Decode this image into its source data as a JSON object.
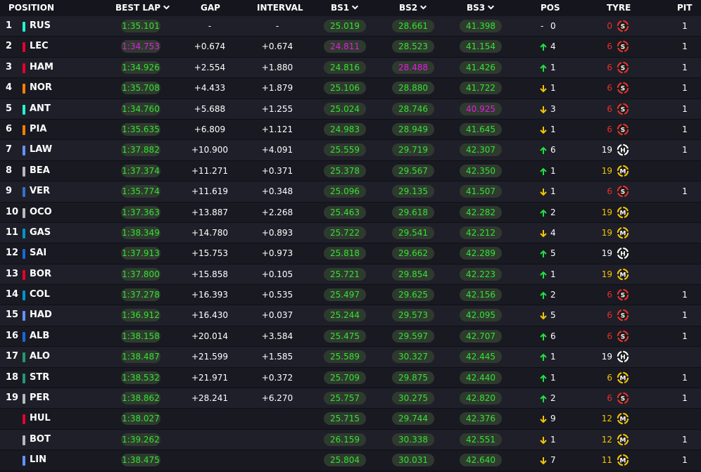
{
  "headers": {
    "position": "POSITION",
    "best_lap": "BEST LAP",
    "gap": "GAP",
    "interval": "INTERVAL",
    "bs1": "BS1",
    "bs2": "BS2",
    "bs3": "BS3",
    "pos": "POS",
    "tyre": "TYRE",
    "pit": "PIT"
  },
  "colors": {
    "green": "#33e233",
    "purple": "#e01ee0",
    "up": "#22dd44",
    "down": "#f5c400",
    "soft": "#e8302a",
    "medium": "#f5c400",
    "hard": "#ffffff"
  },
  "rows": [
    {
      "position": "1",
      "driver": "RUS",
      "team_color": "#27f4d2",
      "best_lap": "1:35.101",
      "best_lap_purple": false,
      "gap": "-",
      "interval": "-",
      "bs1": "25.019",
      "bs1_purple": false,
      "bs2": "28.661",
      "bs2_purple": false,
      "bs3": "41.398",
      "bs3_purple": false,
      "pos_change": "none",
      "pos_value": "0",
      "tyre_laps": "0",
      "tyre": "S",
      "pit": "1"
    },
    {
      "position": "2",
      "driver": "LEC",
      "team_color": "#e8002d",
      "best_lap": "1:34.753",
      "best_lap_purple": true,
      "gap": "+0.674",
      "interval": "+0.674",
      "bs1": "24.811",
      "bs1_purple": true,
      "bs2": "28.523",
      "bs2_purple": false,
      "bs3": "41.154",
      "bs3_purple": false,
      "pos_change": "up",
      "pos_value": "4",
      "tyre_laps": "6",
      "tyre": "S",
      "pit": "1"
    },
    {
      "position": "3",
      "driver": "HAM",
      "team_color": "#e8002d",
      "best_lap": "1:34.926",
      "best_lap_purple": false,
      "gap": "+2.554",
      "interval": "+1.880",
      "bs1": "24.816",
      "bs1_purple": false,
      "bs2": "28.488",
      "bs2_purple": true,
      "bs3": "41.426",
      "bs3_purple": false,
      "pos_change": "up",
      "pos_value": "1",
      "tyre_laps": "6",
      "tyre": "S",
      "pit": "1"
    },
    {
      "position": "4",
      "driver": "NOR",
      "team_color": "#ff8000",
      "best_lap": "1:35.708",
      "best_lap_purple": false,
      "gap": "+4.433",
      "interval": "+1.879",
      "bs1": "25.106",
      "bs1_purple": false,
      "bs2": "28.880",
      "bs2_purple": false,
      "bs3": "41.722",
      "bs3_purple": false,
      "pos_change": "down",
      "pos_value": "1",
      "tyre_laps": "6",
      "tyre": "S",
      "pit": "1"
    },
    {
      "position": "5",
      "driver": "ANT",
      "team_color": "#27f4d2",
      "best_lap": "1:34.760",
      "best_lap_purple": false,
      "gap": "+5.688",
      "interval": "+1.255",
      "bs1": "25.024",
      "bs1_purple": false,
      "bs2": "28.746",
      "bs2_purple": false,
      "bs3": "40.925",
      "bs3_purple": true,
      "pos_change": "down",
      "pos_value": "3",
      "tyre_laps": "6",
      "tyre": "S",
      "pit": "1"
    },
    {
      "position": "6",
      "driver": "PIA",
      "team_color": "#ff8000",
      "best_lap": "1:35.635",
      "best_lap_purple": false,
      "gap": "+6.809",
      "interval": "+1.121",
      "bs1": "24.983",
      "bs1_purple": false,
      "bs2": "28.949",
      "bs2_purple": false,
      "bs3": "41.645",
      "bs3_purple": false,
      "pos_change": "down",
      "pos_value": "1",
      "tyre_laps": "6",
      "tyre": "S",
      "pit": "1"
    },
    {
      "position": "7",
      "driver": "LAW",
      "team_color": "#6692ff",
      "best_lap": "1:37.882",
      "best_lap_purple": false,
      "gap": "+10.900",
      "interval": "+4.091",
      "bs1": "25.559",
      "bs1_purple": false,
      "bs2": "29.719",
      "bs2_purple": false,
      "bs3": "42.307",
      "bs3_purple": false,
      "pos_change": "up",
      "pos_value": "6",
      "tyre_laps": "19",
      "tyre": "H",
      "pit": "1"
    },
    {
      "position": "8",
      "driver": "BEA",
      "team_color": "#b6babd",
      "best_lap": "1:37.374",
      "best_lap_purple": false,
      "gap": "+11.271",
      "interval": "+0.371",
      "bs1": "25.378",
      "bs1_purple": false,
      "bs2": "29.567",
      "bs2_purple": false,
      "bs3": "42.350",
      "bs3_purple": false,
      "pos_change": "up",
      "pos_value": "1",
      "tyre_laps": "19",
      "tyre": "M",
      "pit": ""
    },
    {
      "position": "9",
      "driver": "VER",
      "team_color": "#3671c6",
      "best_lap": "1:35.774",
      "best_lap_purple": false,
      "gap": "+11.619",
      "interval": "+0.348",
      "bs1": "25.096",
      "bs1_purple": false,
      "bs2": "29.135",
      "bs2_purple": false,
      "bs3": "41.507",
      "bs3_purple": false,
      "pos_change": "down",
      "pos_value": "1",
      "tyre_laps": "6",
      "tyre": "S",
      "pit": "1"
    },
    {
      "position": "10",
      "driver": "OCO",
      "team_color": "#b6babd",
      "best_lap": "1:37.363",
      "best_lap_purple": false,
      "gap": "+13.887",
      "interval": "+2.268",
      "bs1": "25.463",
      "bs1_purple": false,
      "bs2": "29.618",
      "bs2_purple": false,
      "bs3": "42.282",
      "bs3_purple": false,
      "pos_change": "up",
      "pos_value": "2",
      "tyre_laps": "19",
      "tyre": "M",
      "pit": ""
    },
    {
      "position": "11",
      "driver": "GAS",
      "team_color": "#0093cc",
      "best_lap": "1:38.349",
      "best_lap_purple": false,
      "gap": "+14.780",
      "interval": "+0.893",
      "bs1": "25.722",
      "bs1_purple": false,
      "bs2": "29.541",
      "bs2_purple": false,
      "bs3": "42.212",
      "bs3_purple": false,
      "pos_change": "down",
      "pos_value": "4",
      "tyre_laps": "19",
      "tyre": "M",
      "pit": ""
    },
    {
      "position": "12",
      "driver": "SAI",
      "team_color": "#1868db",
      "best_lap": "1:37.913",
      "best_lap_purple": false,
      "gap": "+15.753",
      "interval": "+0.973",
      "bs1": "25.818",
      "bs1_purple": false,
      "bs2": "29.662",
      "bs2_purple": false,
      "bs3": "42.289",
      "bs3_purple": false,
      "pos_change": "up",
      "pos_value": "5",
      "tyre_laps": "19",
      "tyre": "H",
      "pit": ""
    },
    {
      "position": "13",
      "driver": "BOR",
      "team_color": "#e8002d",
      "best_lap": "1:37.800",
      "best_lap_purple": false,
      "gap": "+15.858",
      "interval": "+0.105",
      "bs1": "25.721",
      "bs1_purple": false,
      "bs2": "29.854",
      "bs2_purple": false,
      "bs3": "42.223",
      "bs3_purple": false,
      "pos_change": "up",
      "pos_value": "1",
      "tyre_laps": "19",
      "tyre": "M",
      "pit": ""
    },
    {
      "position": "14",
      "driver": "COL",
      "team_color": "#0093cc",
      "best_lap": "1:37.278",
      "best_lap_purple": false,
      "gap": "+16.393",
      "interval": "+0.535",
      "bs1": "25.497",
      "bs1_purple": false,
      "bs2": "29.625",
      "bs2_purple": false,
      "bs3": "42.156",
      "bs3_purple": false,
      "pos_change": "up",
      "pos_value": "2",
      "tyre_laps": "6",
      "tyre": "S",
      "pit": "1"
    },
    {
      "position": "15",
      "driver": "HAD",
      "team_color": "#6692ff",
      "best_lap": "1:36.912",
      "best_lap_purple": false,
      "gap": "+16.430",
      "interval": "+0.037",
      "bs1": "25.244",
      "bs1_purple": false,
      "bs2": "29.573",
      "bs2_purple": false,
      "bs3": "42.095",
      "bs3_purple": false,
      "pos_change": "down",
      "pos_value": "5",
      "tyre_laps": "6",
      "tyre": "S",
      "pit": "1"
    },
    {
      "position": "16",
      "driver": "ALB",
      "team_color": "#1868db",
      "best_lap": "1:38.158",
      "best_lap_purple": false,
      "gap": "+20.014",
      "interval": "+3.584",
      "bs1": "25.475",
      "bs1_purple": false,
      "bs2": "29.597",
      "bs2_purple": false,
      "bs3": "42.707",
      "bs3_purple": false,
      "pos_change": "up",
      "pos_value": "6",
      "tyre_laps": "6",
      "tyre": "S",
      "pit": "1"
    },
    {
      "position": "17",
      "driver": "ALO",
      "team_color": "#229971",
      "best_lap": "1:38.487",
      "best_lap_purple": false,
      "gap": "+21.599",
      "interval": "+1.585",
      "bs1": "25.589",
      "bs1_purple": false,
      "bs2": "30.327",
      "bs2_purple": false,
      "bs3": "42.445",
      "bs3_purple": false,
      "pos_change": "up",
      "pos_value": "1",
      "tyre_laps": "19",
      "tyre": "H",
      "pit": ""
    },
    {
      "position": "18",
      "driver": "STR",
      "team_color": "#229971",
      "best_lap": "1:38.532",
      "best_lap_purple": false,
      "gap": "+21.971",
      "interval": "+0.372",
      "bs1": "25.709",
      "bs1_purple": false,
      "bs2": "29.875",
      "bs2_purple": false,
      "bs3": "42.440",
      "bs3_purple": false,
      "pos_change": "up",
      "pos_value": "1",
      "tyre_laps": "6",
      "tyre": "M",
      "pit": "1"
    },
    {
      "position": "19",
      "driver": "PER",
      "team_color": "#b6babd",
      "best_lap": "1:38.862",
      "best_lap_purple": false,
      "gap": "+28.241",
      "interval": "+6.270",
      "bs1": "25.757",
      "bs1_purple": false,
      "bs2": "30.275",
      "bs2_purple": false,
      "bs3": "42.820",
      "bs3_purple": false,
      "pos_change": "up",
      "pos_value": "2",
      "tyre_laps": "6",
      "tyre": "S",
      "pit": "1"
    },
    {
      "position": "",
      "driver": "HUL",
      "team_color": "#e8002d",
      "best_lap": "1:38.027",
      "best_lap_purple": false,
      "gap": "",
      "interval": "",
      "bs1": "25.715",
      "bs1_purple": false,
      "bs2": "29.744",
      "bs2_purple": false,
      "bs3": "42.376",
      "bs3_purple": false,
      "pos_change": "down",
      "pos_value": "9",
      "tyre_laps": "12",
      "tyre": "M",
      "pit": ""
    },
    {
      "position": "",
      "driver": "BOT",
      "team_color": "#b6babd",
      "best_lap": "1:39.262",
      "best_lap_purple": false,
      "gap": "",
      "interval": "",
      "bs1": "26.159",
      "bs1_purple": false,
      "bs2": "30.338",
      "bs2_purple": false,
      "bs3": "42.551",
      "bs3_purple": false,
      "pos_change": "down",
      "pos_value": "1",
      "tyre_laps": "12",
      "tyre": "M",
      "pit": "1"
    },
    {
      "position": "",
      "driver": "LIN",
      "team_color": "#6692ff",
      "best_lap": "1:38.475",
      "best_lap_purple": false,
      "gap": "",
      "interval": "",
      "bs1": "25.804",
      "bs1_purple": false,
      "bs2": "30.031",
      "bs2_purple": false,
      "bs3": "42.640",
      "bs3_purple": false,
      "pos_change": "down",
      "pos_value": "7",
      "tyre_laps": "11",
      "tyre": "M",
      "pit": "1"
    }
  ]
}
